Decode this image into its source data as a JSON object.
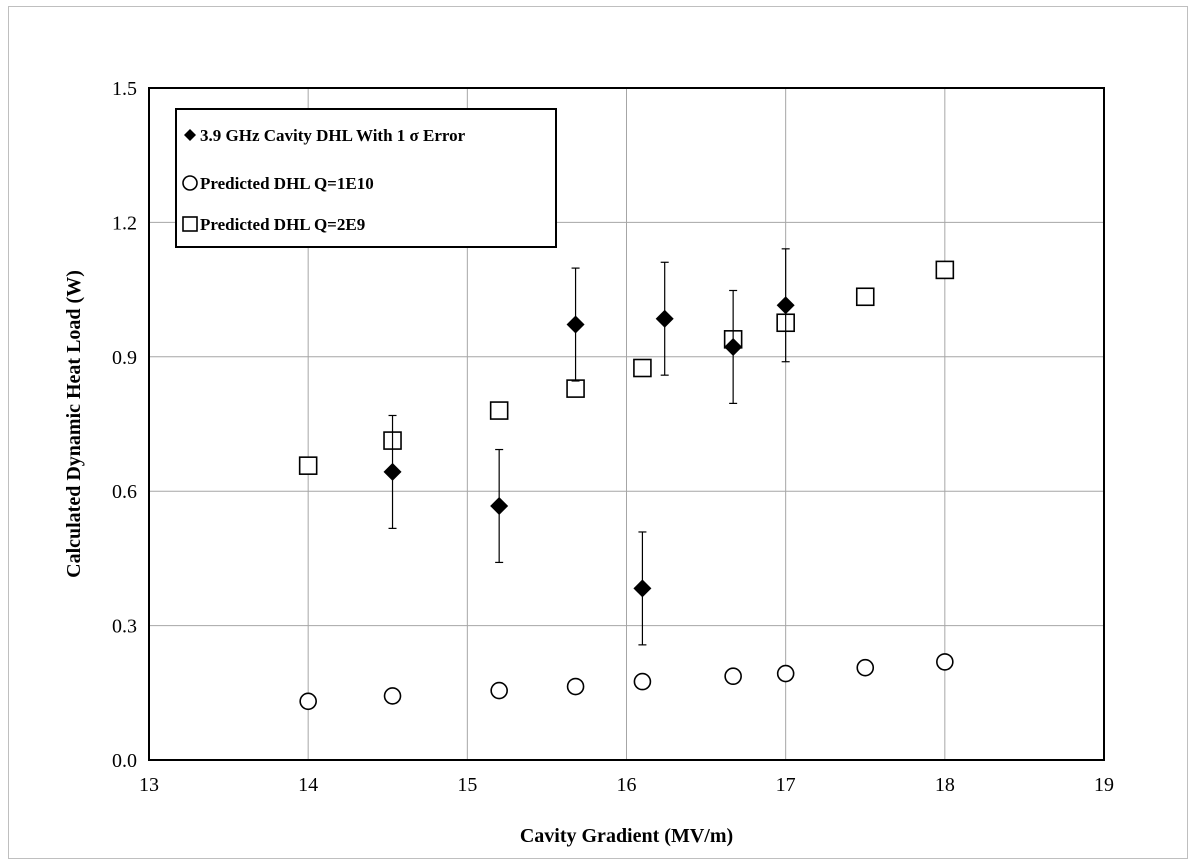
{
  "chart_data": {
    "type": "scatter",
    "title": "",
    "xlabel": "Cavity Gradient (MV/m)",
    "ylabel": "Calculated Dynamic Heat Load (W)",
    "xlim": [
      13,
      19
    ],
    "ylim": [
      0,
      1.5
    ],
    "x_ticks": [
      "13",
      "14",
      "15",
      "16",
      "17",
      "18",
      "19"
    ],
    "y_ticks": [
      "0.0",
      "0.3",
      "0.6",
      "0.9",
      "1.2",
      "1.5"
    ],
    "grid": true,
    "legend_position": "top-left",
    "series": [
      {
        "name": "3.9 GHz Cavity DHL With 1 σ Error",
        "marker": "diamond",
        "color": "#000000",
        "x": [
          14.53,
          15.2,
          15.68,
          16.1,
          16.24,
          16.67,
          17.0
        ],
        "y": [
          0.643,
          0.567,
          0.972,
          0.383,
          0.985,
          0.922,
          1.015
        ],
        "error": [
          0.126,
          0.126,
          0.126,
          0.126,
          0.126,
          0.126,
          0.126
        ]
      },
      {
        "name": "Predicted DHL Q=1E10",
        "marker": "circle",
        "color": "#000000",
        "x": [
          14.0,
          14.53,
          15.2,
          15.68,
          16.1,
          16.67,
          17.0,
          17.5,
          18.0
        ],
        "y": [
          0.131,
          0.143,
          0.155,
          0.164,
          0.175,
          0.187,
          0.193,
          0.206,
          0.219
        ]
      },
      {
        "name": "Predicted DHL Q=2E9",
        "marker": "square",
        "color": "#000000",
        "x": [
          14.0,
          14.53,
          15.2,
          15.68,
          16.1,
          16.67,
          17.0,
          17.5,
          18.0
        ],
        "y": [
          0.657,
          0.713,
          0.78,
          0.829,
          0.875,
          0.939,
          0.976,
          1.034,
          1.094
        ]
      }
    ]
  }
}
